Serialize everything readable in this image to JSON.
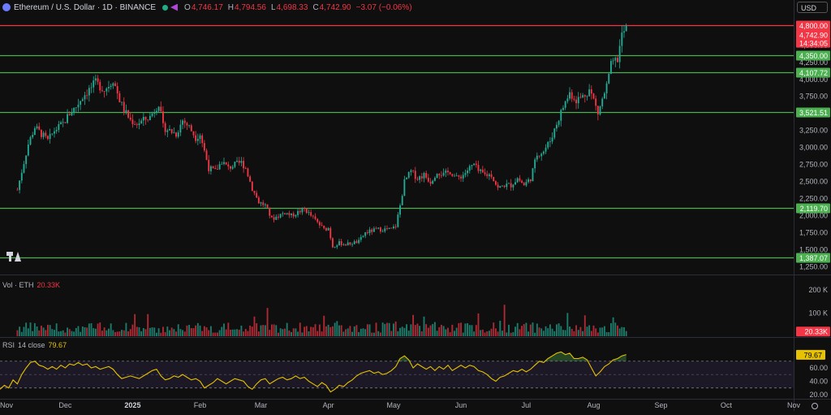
{
  "header": {
    "title": "Ethereum / U.S. Dollar · 1D · BINANCE",
    "ohlc": [
      {
        "k": "O",
        "v": "4,746.17"
      },
      {
        "k": "H",
        "v": "4,794.56"
      },
      {
        "k": "L",
        "v": "4,698.33"
      },
      {
        "k": "C",
        "v": "4,742.90"
      }
    ],
    "change": "−3.07 (−0.06%)",
    "currency": "USD"
  },
  "volume_label": {
    "name": "Vol · ETH",
    "value": "20.33K"
  },
  "rsi_label": {
    "name": "RSI",
    "params": "14 close",
    "value": "79.67"
  },
  "colors": {
    "up": "#22ab94",
    "down": "#f23645",
    "level": "#4caf50",
    "resistance": "#f23645",
    "rsi": "#e6c200",
    "bg": "#0f0f0f"
  },
  "chart_data": [
    {
      "type": "candlestick",
      "panel": "price",
      "ylim": [
        1150,
        4950
      ],
      "y_ticks": [
        "1,250.00",
        "1,500.00",
        "1,750.00",
        "2,000.00",
        "2,250.00",
        "2,500.00",
        "2,750.00",
        "3,000.00",
        "3,250.00",
        "3,500.00",
        "3,750.00",
        "4,000.00",
        "4,250.00",
        "4,500.00",
        "4,800.00"
      ],
      "last_price": {
        "value": 4742.9,
        "label": "4,742.90",
        "countdown": "14:34:05",
        "top_label": "4,800.00"
      },
      "levels": [
        {
          "value": 4800,
          "label": "4,800.00",
          "color": "#f23645"
        },
        {
          "value": 4350,
          "label": "4,350.00",
          "color": "#4caf50"
        },
        {
          "value": 4107.72,
          "label": "4,107.72",
          "color": "#4caf50"
        },
        {
          "value": 3521.51,
          "label": "3,521.51",
          "color": "#4caf50"
        },
        {
          "value": 2119.7,
          "label": "2,119.70",
          "color": "#4caf50"
        },
        {
          "value": 1387.07,
          "label": "1,387.07",
          "color": "#4caf50"
        }
      ],
      "x_ticks": [
        "Nov",
        "Dec",
        "2025",
        "Feb",
        "Mar",
        "Apr",
        "May",
        "Jun",
        "Jul",
        "Aug",
        "Sep",
        "Oct",
        "Nov"
      ],
      "x_tick_days": [
        0,
        30,
        61,
        92,
        120,
        151,
        181,
        212,
        242,
        273,
        304,
        334,
        365
      ],
      "x_range_days": [
        0,
        365
      ],
      "close_path": [
        [
          8,
          2380
        ],
        [
          10,
          2650
        ],
        [
          13,
          3050
        ],
        [
          16,
          3300
        ],
        [
          19,
          3200
        ],
        [
          22,
          3100
        ],
        [
          25,
          3250
        ],
        [
          29,
          3350
        ],
        [
          32,
          3500
        ],
        [
          35,
          3600
        ],
        [
          38,
          3750
        ],
        [
          41,
          3850
        ],
        [
          44,
          3950
        ],
        [
          46,
          3900
        ],
        [
          48,
          3850
        ],
        [
          51,
          3950
        ],
        [
          52,
          4000
        ],
        [
          55,
          3700
        ],
        [
          57,
          3550
        ],
        [
          60,
          3400
        ],
        [
          63,
          3350
        ],
        [
          66,
          3400
        ],
        [
          69,
          3450
        ],
        [
          72,
          3600
        ],
        [
          73,
          3650
        ],
        [
          75,
          3300
        ],
        [
          78,
          3250
        ],
        [
          81,
          3200
        ],
        [
          84,
          3400
        ],
        [
          87,
          3300
        ],
        [
          90,
          3150
        ],
        [
          92,
          3200
        ],
        [
          94,
          2950
        ],
        [
          96,
          2700
        ],
        [
          99,
          2650
        ],
        [
          102,
          2800
        ],
        [
          105,
          2700
        ],
        [
          108,
          2750
        ],
        [
          111,
          2780
        ],
        [
          113,
          2700
        ],
        [
          116,
          2400
        ],
        [
          119,
          2200
        ],
        [
          122,
          2150
        ],
        [
          125,
          1950
        ],
        [
          128,
          2000
        ],
        [
          131,
          2050
        ],
        [
          134,
          2000
        ],
        [
          137,
          2050
        ],
        [
          140,
          2100
        ],
        [
          143,
          2000
        ],
        [
          146,
          1900
        ],
        [
          149,
          1800
        ],
        [
          151,
          1820
        ],
        [
          153,
          1550
        ],
        [
          156,
          1600
        ],
        [
          159,
          1580
        ],
        [
          162,
          1600
        ],
        [
          165,
          1620
        ],
        [
          168,
          1750
        ],
        [
          171,
          1780
        ],
        [
          174,
          1800
        ],
        [
          177,
          1800
        ],
        [
          180,
          1800
        ],
        [
          182,
          1850
        ],
        [
          184,
          2150
        ],
        [
          186,
          2500
        ],
        [
          189,
          2650
        ],
        [
          192,
          2550
        ],
        [
          195,
          2600
        ],
        [
          198,
          2500
        ],
        [
          201,
          2650
        ],
        [
          204,
          2600
        ],
        [
          207,
          2650
        ],
        [
          210,
          2550
        ],
        [
          213,
          2600
        ],
        [
          216,
          2700
        ],
        [
          218,
          2750
        ],
        [
          220,
          2650
        ],
        [
          223,
          2600
        ],
        [
          226,
          2600
        ],
        [
          229,
          2400
        ],
        [
          232,
          2450
        ],
        [
          235,
          2450
        ],
        [
          238,
          2550
        ],
        [
          241,
          2450
        ],
        [
          244,
          2550
        ],
        [
          247,
          2900
        ],
        [
          250,
          2950
        ],
        [
          253,
          3100
        ],
        [
          256,
          3350
        ],
        [
          259,
          3600
        ],
        [
          262,
          3800
        ],
        [
          265,
          3700
        ],
        [
          268,
          3750
        ],
        [
          271,
          3850
        ],
        [
          273,
          3700
        ],
        [
          275,
          3500
        ],
        [
          277,
          3700
        ],
        [
          279,
          3900
        ],
        [
          281,
          4200
        ],
        [
          284,
          4300
        ],
        [
          286,
          4650
        ],
        [
          288,
          4750
        ]
      ],
      "volume_ylim": [
        0,
        260
      ],
      "volume_ticks": [
        "100 K",
        "200 K"
      ],
      "volume_ticks_values": [
        100,
        200
      ],
      "volume_last": "20.33K",
      "rsi_ylim": [
        15,
        105
      ],
      "rsi_ticks": [
        "20.00",
        "40.00",
        "60.00"
      ],
      "rsi_ticks_values": [
        20,
        40,
        60
      ],
      "rsi_band": [
        30,
        70
      ],
      "rsi_last": "79.67",
      "rsi_path": [
        [
          0,
          28
        ],
        [
          2,
          34
        ],
        [
          4,
          30
        ],
        [
          6,
          42
        ],
        [
          8,
          36
        ],
        [
          10,
          50
        ],
        [
          12,
          60
        ],
        [
          14,
          68
        ],
        [
          16,
          70
        ],
        [
          18,
          64
        ],
        [
          20,
          62
        ],
        [
          22,
          58
        ],
        [
          24,
          62
        ],
        [
          26,
          58
        ],
        [
          28,
          64
        ],
        [
          30,
          60
        ],
        [
          32,
          66
        ],
        [
          34,
          64
        ],
        [
          36,
          68
        ],
        [
          38,
          64
        ],
        [
          40,
          66
        ],
        [
          42,
          60
        ],
        [
          44,
          62
        ],
        [
          46,
          58
        ],
        [
          48,
          60
        ],
        [
          50,
          62
        ],
        [
          52,
          58
        ],
        [
          54,
          50
        ],
        [
          56,
          44
        ],
        [
          58,
          46
        ],
        [
          60,
          48
        ],
        [
          62,
          46
        ],
        [
          64,
          44
        ],
        [
          66,
          48
        ],
        [
          68,
          52
        ],
        [
          70,
          56
        ],
        [
          72,
          58
        ],
        [
          74,
          48
        ],
        [
          76,
          42
        ],
        [
          78,
          44
        ],
        [
          80,
          48
        ],
        [
          82,
          46
        ],
        [
          84,
          50
        ],
        [
          86,
          46
        ],
        [
          88,
          42
        ],
        [
          90,
          44
        ],
        [
          92,
          40
        ],
        [
          94,
          30
        ],
        [
          96,
          34
        ],
        [
          98,
          38
        ],
        [
          100,
          44
        ],
        [
          102,
          40
        ],
        [
          104,
          36
        ],
        [
          106,
          40
        ],
        [
          108,
          44
        ],
        [
          110,
          42
        ],
        [
          112,
          40
        ],
        [
          114,
          32
        ],
        [
          116,
          28
        ],
        [
          118,
          36
        ],
        [
          120,
          42
        ],
        [
          122,
          44
        ],
        [
          124,
          36
        ],
        [
          126,
          40
        ],
        [
          128,
          44
        ],
        [
          130,
          46
        ],
        [
          132,
          42
        ],
        [
          134,
          44
        ],
        [
          136,
          48
        ],
        [
          138,
          44
        ],
        [
          140,
          46
        ],
        [
          142,
          40
        ],
        [
          144,
          36
        ],
        [
          146,
          32
        ],
        [
          148,
          38
        ],
        [
          150,
          34
        ],
        [
          152,
          24
        ],
        [
          154,
          28
        ],
        [
          156,
          34
        ],
        [
          158,
          32
        ],
        [
          160,
          38
        ],
        [
          162,
          42
        ],
        [
          164,
          48
        ],
        [
          166,
          52
        ],
        [
          168,
          54
        ],
        [
          170,
          56
        ],
        [
          172,
          52
        ],
        [
          174,
          54
        ],
        [
          176,
          50
        ],
        [
          178,
          52
        ],
        [
          180,
          56
        ],
        [
          182,
          62
        ],
        [
          184,
          74
        ],
        [
          186,
          78
        ],
        [
          188,
          72
        ],
        [
          190,
          60
        ],
        [
          192,
          66
        ],
        [
          194,
          62
        ],
        [
          196,
          58
        ],
        [
          198,
          62
        ],
        [
          200,
          56
        ],
        [
          202,
          62
        ],
        [
          204,
          58
        ],
        [
          206,
          64
        ],
        [
          208,
          56
        ],
        [
          210,
          60
        ],
        [
          212,
          64
        ],
        [
          214,
          60
        ],
        [
          216,
          64
        ],
        [
          218,
          62
        ],
        [
          220,
          56
        ],
        [
          222,
          54
        ],
        [
          224,
          50
        ],
        [
          226,
          44
        ],
        [
          228,
          40
        ],
        [
          230,
          46
        ],
        [
          232,
          48
        ],
        [
          234,
          52
        ],
        [
          236,
          56
        ],
        [
          238,
          54
        ],
        [
          240,
          58
        ],
        [
          242,
          54
        ],
        [
          244,
          58
        ],
        [
          246,
          64
        ],
        [
          248,
          70
        ],
        [
          250,
          68
        ],
        [
          252,
          74
        ],
        [
          254,
          78
        ],
        [
          256,
          82
        ],
        [
          258,
          84
        ],
        [
          260,
          80
        ],
        [
          262,
          82
        ],
        [
          264,
          74
        ],
        [
          266,
          74
        ],
        [
          268,
          76
        ],
        [
          270,
          72
        ],
        [
          272,
          60
        ],
        [
          274,
          48
        ],
        [
          276,
          54
        ],
        [
          278,
          62
        ],
        [
          280,
          66
        ],
        [
          282,
          72
        ],
        [
          284,
          74
        ],
        [
          286,
          78
        ],
        [
          288,
          80
        ]
      ]
    }
  ]
}
